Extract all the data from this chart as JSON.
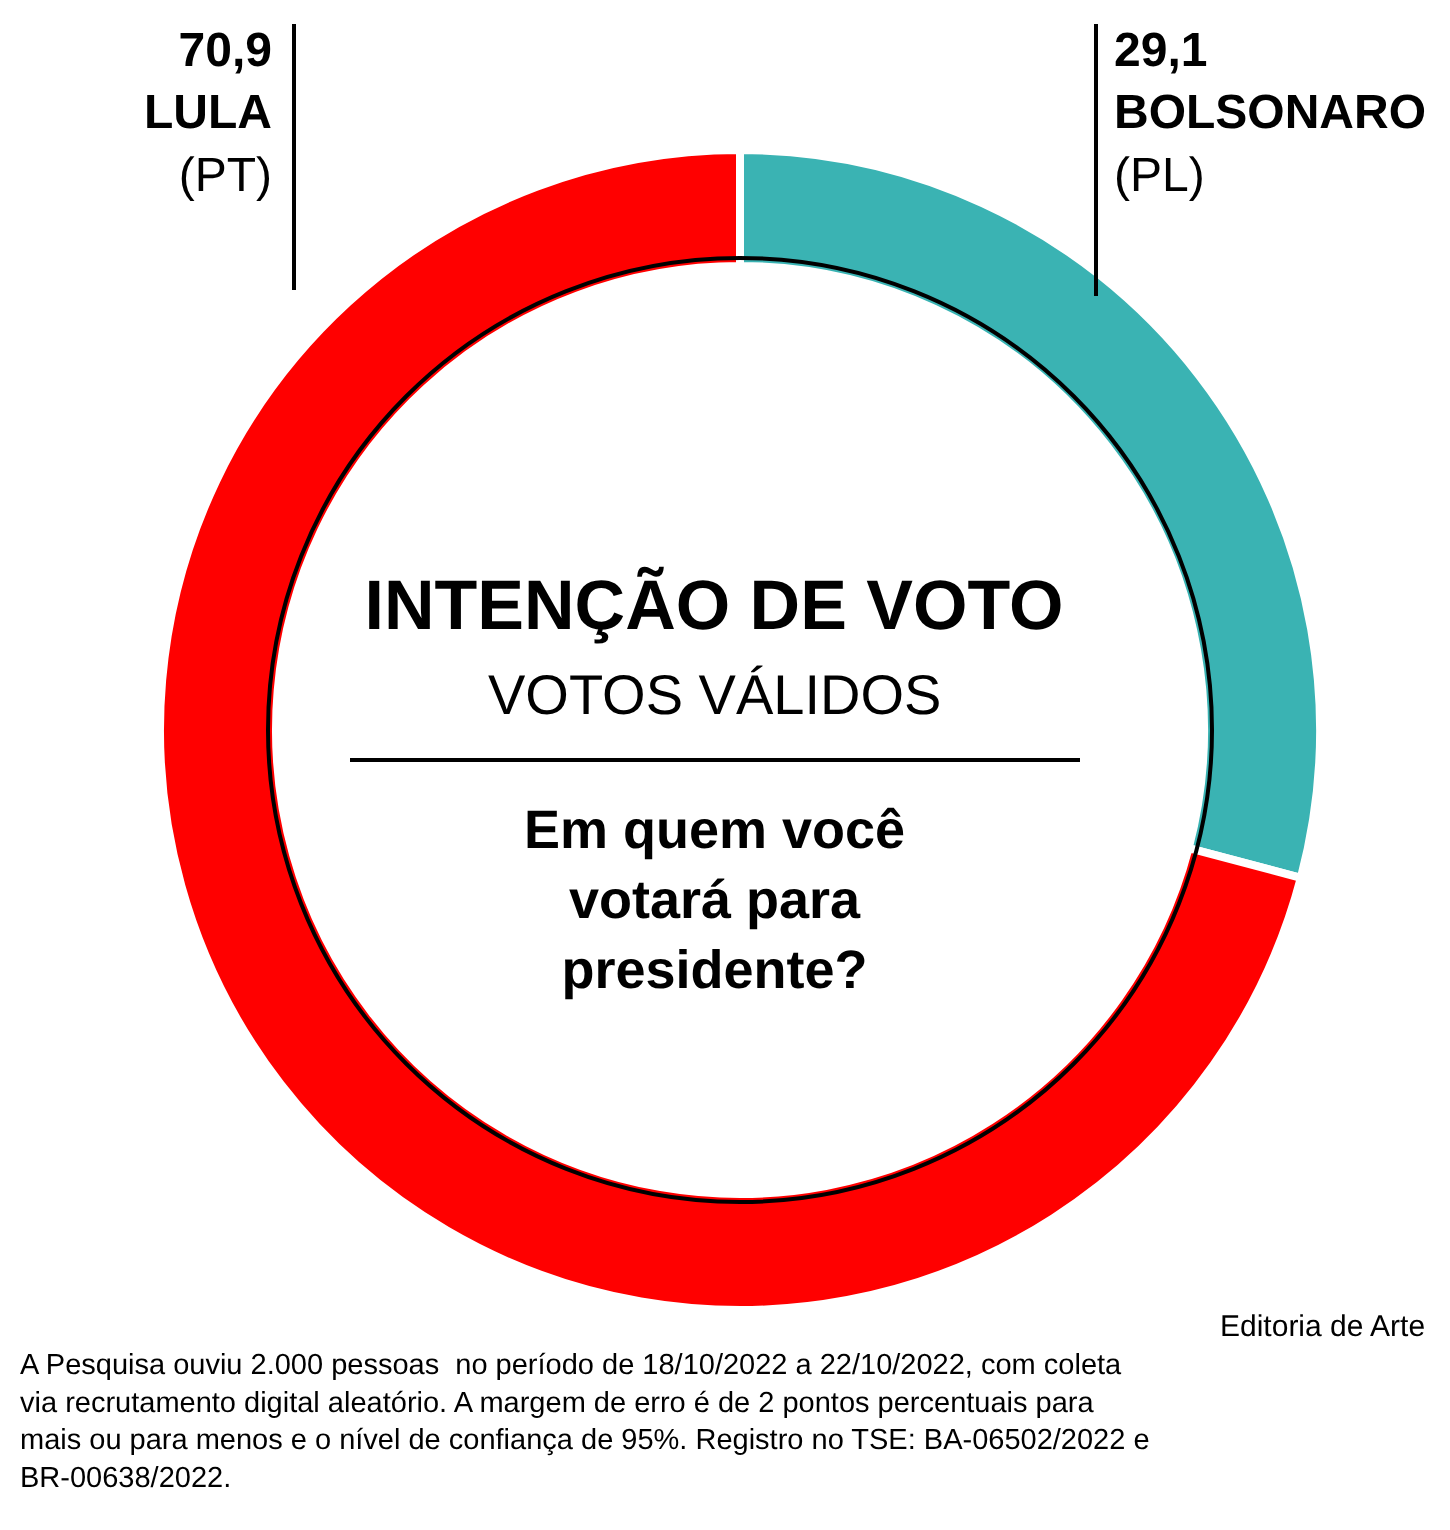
{
  "chart_data": {
    "type": "donut",
    "title": "INTENÇÃO DE VOTO",
    "subtitle": "VOTOS VÁLIDOS",
    "categories": [
      "BOLSONARO (PL)",
      "LULA (PT)"
    ],
    "values": [
      29.1,
      70.9
    ],
    "colors": [
      "#3ab3b3",
      "#ff0000"
    ],
    "value_labels": [
      "29,1",
      "70,9"
    ],
    "legend": false,
    "annotations": [
      "Em quem você votará para presidente?",
      "Editoria de Arte",
      "A Pesquisa ouviu 2.000 pessoas  no período de 18/10/2022 a 22/10/2022, com coleta via recrutamento digital aleatório. A margem de erro é de 2 pontos percentuais para mais ou para menos e o nível de confiança de 95%. Registro no TSE: BA-06502/2022 e BR-00638/2022."
    ]
  }
}
